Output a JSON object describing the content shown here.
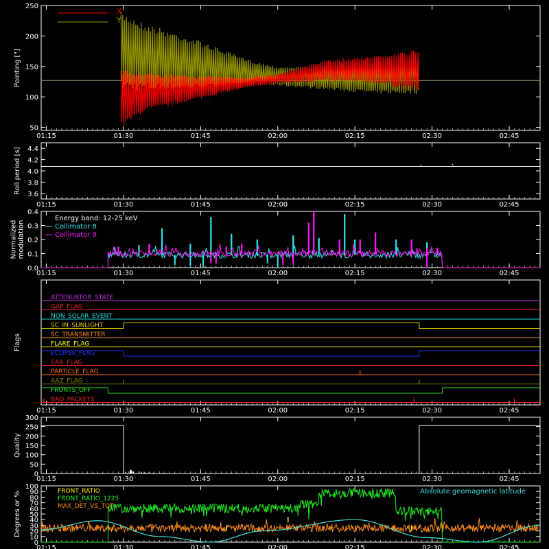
{
  "colors": {
    "background": "#000000",
    "axes": "#ffffff",
    "x_pointing": "#ff0000",
    "y_pointing": "#9a9a00",
    "roll": "#ffffff",
    "cyan": "#33e6f0",
    "magenta": "#ff1aff",
    "front_ratio": "#ffee00",
    "front_ratio_1225": "#22ee22",
    "max_det": "#ff8c1a",
    "geomag": "#44dddd"
  },
  "time_axis": {
    "min_minutes": 75,
    "max_minutes": 172,
    "ticks": [
      {
        "minutes": 76,
        "label": "01:15"
      },
      {
        "minutes": 91,
        "label": "01:30"
      },
      {
        "minutes": 106,
        "label": "01:45"
      },
      {
        "minutes": 121,
        "label": "02:00"
      },
      {
        "minutes": 136,
        "label": "02:15"
      },
      {
        "minutes": 151,
        "label": "02:30"
      },
      {
        "minutes": 166,
        "label": "02:45"
      }
    ]
  },
  "chart_data": [
    {
      "type": "line",
      "panel": "pointing",
      "ylabel": "Pointing [\"]",
      "ylim": [
        45,
        250
      ],
      "yticks": [
        50,
        100,
        150,
        200,
        250
      ],
      "baseline": 127,
      "data_start": 90.5,
      "data_end": 148.5,
      "series": [
        {
          "name": "X",
          "color": "x_pointing",
          "envelope": [
            {
              "t": 90.5,
              "low": 48,
              "high": 145
            },
            {
              "t": 95,
              "low": 75,
              "high": 140
            },
            {
              "t": 105,
              "low": 95,
              "high": 135
            },
            {
              "t": 115,
              "low": 115,
              "high": 133
            },
            {
              "t": 121,
              "low": 122,
              "high": 138
            },
            {
              "t": 130,
              "low": 125,
              "high": 160
            },
            {
              "t": 140,
              "low": 122,
              "high": 168
            },
            {
              "t": 148.5,
              "low": 108,
              "high": 178
            }
          ]
        },
        {
          "name": "Y",
          "color": "y_pointing",
          "envelope": [
            {
              "t": 90.5,
              "low": 112,
              "high": 240
            },
            {
              "t": 95,
              "low": 110,
              "high": 222
            },
            {
              "t": 105,
              "low": 112,
              "high": 195
            },
            {
              "t": 115,
              "low": 118,
              "high": 162
            },
            {
              "t": 121,
              "low": 118,
              "high": 150
            },
            {
              "t": 130,
              "low": 112,
              "high": 150
            },
            {
              "t": 140,
              "low": 105,
              "high": 155
            },
            {
              "t": 148.5,
              "low": 105,
              "high": 160
            }
          ]
        }
      ]
    },
    {
      "type": "line",
      "panel": "roll",
      "ylabel": "Roll period [s]",
      "ylim": [
        3.5,
        4.5
      ],
      "yticks": [
        3.6,
        3.8,
        4.0,
        4.2,
        4.4
      ],
      "series": [
        {
          "name": "",
          "color": "roll",
          "x": [
            75,
            172
          ],
          "y": [
            4.08,
            4.08
          ]
        }
      ]
    },
    {
      "type": "line",
      "panel": "modulation",
      "ylabel": "Normalized\nmodulation",
      "ylim": [
        0,
        0.4
      ],
      "yticks": [
        0.0,
        0.1,
        0.2,
        0.3,
        0.4
      ],
      "annotation": "Energy band: 12-25 keV",
      "data_start": 88,
      "data_end": 153,
      "series": [
        {
          "name": "Collimator 8",
          "color": "cyan",
          "level": 0.09,
          "spikes": [
            [
              94,
              0.16
            ],
            [
              98.5,
              0.28
            ],
            [
              104,
              0.17
            ],
            [
              108,
              0.36
            ],
            [
              112,
              0.24
            ],
            [
              117,
              0.2
            ],
            [
              124,
              0.23
            ],
            [
              129,
              0.21
            ],
            [
              134,
              0.38
            ],
            [
              136,
              0.2
            ],
            [
              144,
              0.2
            ],
            [
              150,
              0.18
            ],
            [
              152,
              0.14
            ]
          ],
          "dips": [
            [
              101,
              0.02
            ],
            [
              104,
              0.01
            ],
            [
              106.5,
              0.0
            ],
            [
              119,
              0.03
            ],
            [
              121,
              0.0
            ]
          ]
        },
        {
          "name": "Collimator 9",
          "color": "magenta",
          "level": 0.1,
          "spikes": [
            [
              90,
              0.15
            ],
            [
              96,
              0.17
            ],
            [
              111,
              0.15
            ],
            [
              114,
              0.17
            ],
            [
              127,
              0.32
            ],
            [
              128,
              0.4
            ],
            [
              133,
              0.2
            ],
            [
              137,
              0.2
            ],
            [
              140,
              0.25
            ],
            [
              147,
              0.2
            ],
            [
              150,
              0.14
            ],
            [
              152,
              0.14
            ]
          ],
          "dips": [
            [
              108,
              0.03
            ],
            [
              109,
              0.03
            ],
            [
              122,
              0.02
            ],
            [
              124,
              0.02
            ],
            [
              150,
              0.0
            ]
          ]
        }
      ]
    },
    {
      "type": "line",
      "panel": "flags",
      "ylabel": "Flags",
      "rows": [
        {
          "label": "ATTENUATOR_STATE",
          "color": "#c030e0",
          "steps": []
        },
        {
          "label": "GAP_FLAG",
          "color": "#ee2222",
          "steps": []
        },
        {
          "label": "NON_SOLAR_EVENT",
          "color": "#22dddd",
          "steps": []
        },
        {
          "label": "SC_IN_SUNLIGHT",
          "color": "#e8d000",
          "steps": [
            [
              75,
              0
            ],
            [
              91,
              1
            ],
            [
              148.5,
              0
            ]
          ]
        },
        {
          "label": "SC_TRANSMITTER",
          "color": "#ff8c1a",
          "steps": []
        },
        {
          "label": "FLARE_FLAG",
          "color": "#ffff22",
          "steps": []
        },
        {
          "label": "ECLIPSE_FLAG",
          "color": "#2030ff",
          "steps": [
            [
              75,
              1
            ],
            [
              91,
              0
            ],
            [
              148.5,
              1
            ]
          ]
        },
        {
          "label": "SAA_FLAG",
          "color": "#ee2222",
          "steps": []
        },
        {
          "label": "PARTICLE_FLAG",
          "color": "#ff6a1a",
          "steps": [],
          "spikes": [
            137
          ]
        },
        {
          "label": "AAZ_FLAG",
          "color": "#888800",
          "steps": [],
          "spikes": [
            91,
            148.5
          ]
        },
        {
          "label": "FRONTS_OFF",
          "color": "#22dd22",
          "steps": [
            [
              75,
              1
            ],
            [
              88,
              0
            ],
            [
              153,
              1
            ]
          ]
        },
        {
          "label": "BAD_PACKETS",
          "color": "#ee2222",
          "steps": [],
          "spikes": [
            75.5,
            147.5,
            167
          ]
        }
      ]
    },
    {
      "type": "line",
      "panel": "quality",
      "ylabel": "Quality",
      "ylim": [
        0,
        300
      ],
      "yticks": [
        0,
        50,
        100,
        150,
        200,
        250,
        300
      ],
      "series": [
        {
          "name": "",
          "color": "roll",
          "x": [
            75,
            91,
            91,
            148.5,
            148.5,
            172
          ],
          "y": [
            255,
            255,
            0,
            0,
            255,
            255
          ],
          "small_bumps": [
            [
              92,
              25
            ],
            [
              93,
              20
            ],
            [
              94,
              12
            ],
            [
              95.5,
              8
            ],
            [
              97,
              5
            ],
            [
              99,
              4
            ]
          ]
        }
      ]
    },
    {
      "type": "line",
      "panel": "ratios",
      "ylabel": "Degrees or %",
      "ylim": [
        0,
        100
      ],
      "yticks": [
        0,
        10,
        20,
        30,
        40,
        50,
        60,
        70,
        80,
        90,
        100
      ],
      "annotation": "Absolute geomagnetic latitude",
      "series": [
        {
          "name": "FRONT_RATIO",
          "color": "front_ratio",
          "markers": [
            [
              111,
              25
            ],
            [
              123,
              40
            ],
            [
              147,
              25
            ]
          ]
        },
        {
          "name": "FRONT_RATIO_1225",
          "color": "front_ratio_1225",
          "segments": [
            {
              "start": 88,
              "end": 125,
              "level": 60
            },
            {
              "start": 125,
              "end": 129,
              "level": 68
            },
            {
              "start": 129,
              "end": 144,
              "level": 87
            },
            {
              "start": 144,
              "end": 153,
              "level": 55
            }
          ]
        },
        {
          "name": "MAX_DET_VS_TOT",
          "color": "max_det",
          "level": 25
        },
        {
          "name": "",
          "color": "geomag",
          "x": [
            75,
            86,
            98,
            108,
            118,
            136,
            150,
            160,
            172
          ],
          "y": [
            22,
            38,
            10,
            0,
            20,
            40,
            8,
            0,
            30
          ]
        }
      ]
    }
  ]
}
